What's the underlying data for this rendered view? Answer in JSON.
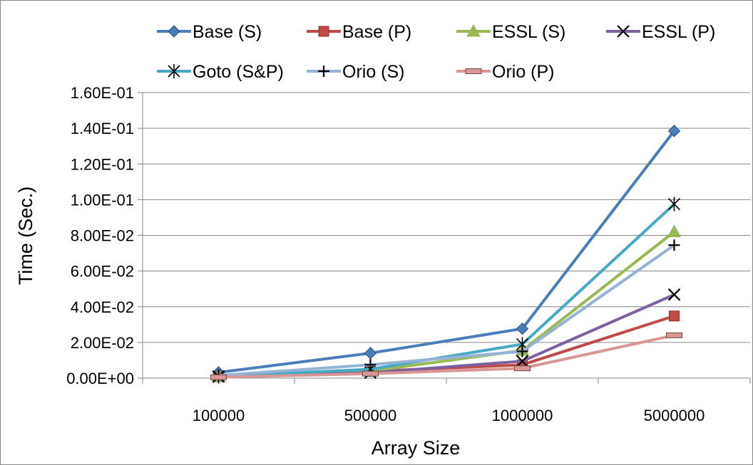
{
  "chart_data": {
    "type": "line",
    "xlabel": "Array Size",
    "ylabel": "Time (Sec.)",
    "categories": [
      "100000",
      "500000",
      "1000000",
      "5000000"
    ],
    "ylim": [
      0,
      0.16
    ],
    "yticks": [
      0,
      0.02,
      0.04,
      0.06,
      0.08,
      0.1,
      0.12,
      0.14,
      0.16
    ],
    "ytick_labels": [
      "0.00E+00",
      "2.00E-02",
      "4.00E-02",
      "6.00E-02",
      "8.00E-02",
      "1.00E-01",
      "1.20E-01",
      "1.40E-01",
      "1.60E-01"
    ],
    "grid": "horizontal",
    "legend_position": "top",
    "series": [
      {
        "name": "Base (S)",
        "values": [
          0.0032,
          0.014,
          0.0277,
          0.1385
        ],
        "color": "#4a7ebb",
        "marker": "diamond"
      },
      {
        "name": "Base (P)",
        "values": [
          0.0008,
          0.0038,
          0.0075,
          0.0348
        ],
        "color": "#be4b48",
        "marker": "square"
      },
      {
        "name": "ESSL (S)",
        "values": [
          0.001,
          0.004,
          0.0155,
          0.082
        ],
        "color": "#98b954",
        "marker": "triangle"
      },
      {
        "name": "ESSL (P)",
        "values": [
          0.0008,
          0.003,
          0.0095,
          0.0468
        ],
        "color": "#7d60a0",
        "marker": "x"
      },
      {
        "name": "Goto (S&P)",
        "values": [
          0.001,
          0.005,
          0.019,
          0.0975
        ],
        "color": "#46aac5",
        "marker": "asterisk"
      },
      {
        "name": "Orio (S)",
        "values": [
          0.0015,
          0.0075,
          0.015,
          0.0745
        ],
        "color": "#95b3d7",
        "marker": "plus"
      },
      {
        "name": "Orio (P)",
        "values": [
          0.0005,
          0.0025,
          0.0055,
          0.024
        ],
        "color": "#d99694",
        "marker": "dash"
      }
    ]
  }
}
